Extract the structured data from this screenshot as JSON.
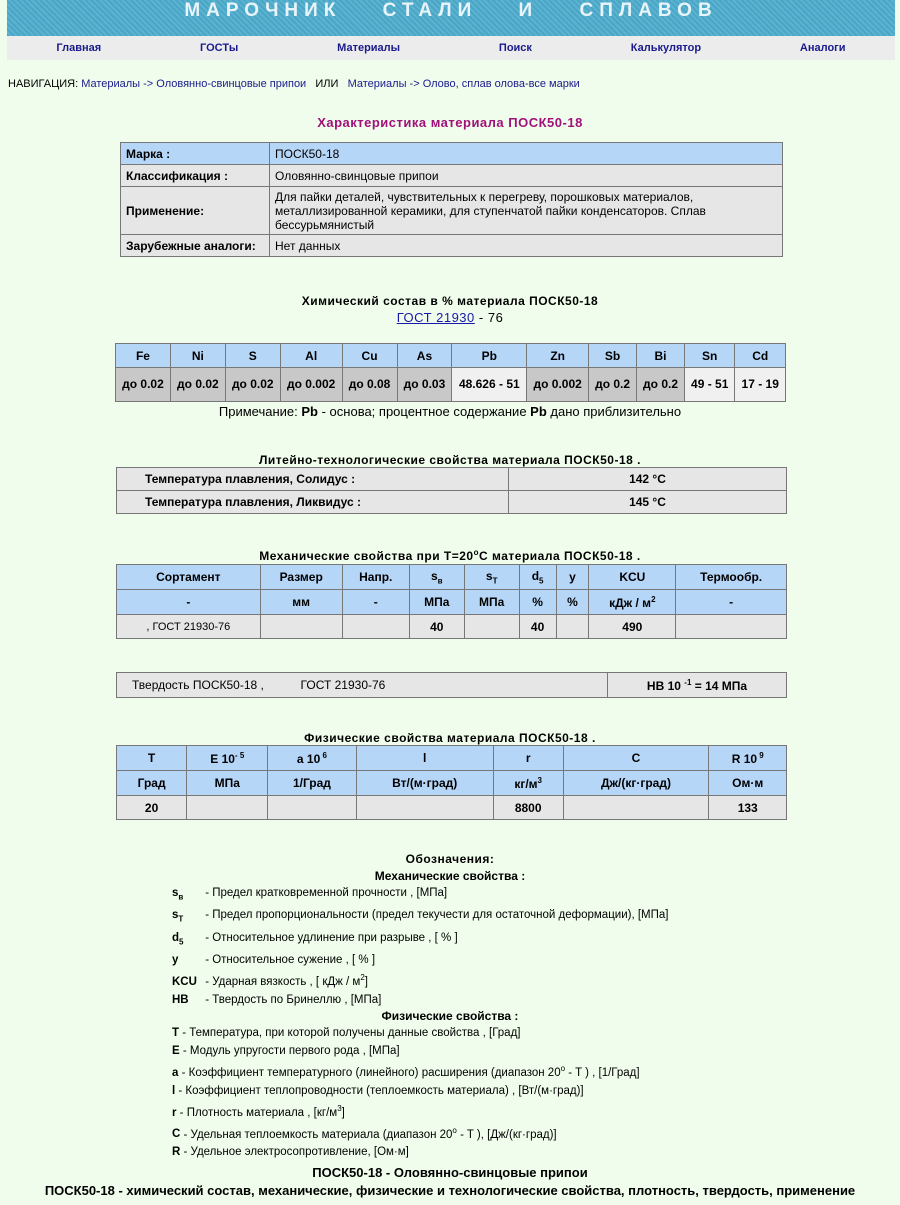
{
  "header": {
    "title": "МАРОЧНИК СТАЛИ И СПЛАВОВ"
  },
  "nav": [
    "Главная",
    "ГОСТы",
    "Материалы",
    "Поиск",
    "Калькулятор",
    "Аналоги"
  ],
  "breadcrumb": {
    "label": "НАВИГАЦИЯ:",
    "path1": "Материалы -> Оловянно-свинцовые припои",
    "or": "ИЛИ",
    "path2": "Материалы -> Олово, сплав олова-все марки"
  },
  "colors": {
    "accent": "#a0107a",
    "header_bg": "#4aa6c6",
    "table_header": "#b6d6f8"
  },
  "char": {
    "title": "Характеристика материала ПОСК50-18",
    "rows": [
      [
        "Марка :",
        "ПОСК50-18"
      ],
      [
        "Классификация :",
        "Оловянно-свинцовые припои"
      ],
      [
        "Применение:",
        "Для пайки деталей, чувствительных к перегреву, порошковых материалов, металлизированной керамики, для ступенчатой пайки конденсаторов. Сплав бессурьмянистый"
      ],
      [
        "Зарубежные аналоги:",
        "Нет данных"
      ]
    ]
  },
  "chem": {
    "title": "Химический состав в % материала   ПОСК50-18",
    "gost_link": "ГОСТ  21930",
    "gost_suffix": " - 76",
    "headers": [
      "Fe",
      "Ni",
      "S",
      "Al",
      "Cu",
      "As",
      "Pb",
      "Zn",
      "Sb",
      "Bi",
      "Sn",
      "Cd"
    ],
    "values": [
      "до 0.02",
      "до 0.02",
      "до 0.02",
      "до 0.002",
      "до 0.08",
      "до 0.03",
      "48.626 - 51",
      "до 0.002",
      "до 0.2",
      "до 0.2",
      "49 - 51",
      "17 - 19"
    ],
    "note": [
      "Примечание: ",
      "Pb",
      " - основа; процентное содержание ",
      "Pb",
      " дано приблизительно"
    ]
  },
  "cast": {
    "title": "Литейно-технологические свойства материала ПОСК50-18 .",
    "rows": [
      [
        "Температура плавления, Солидус :",
        "142   °C"
      ],
      [
        "Температура плавления, Ликвидус :",
        "145   °C"
      ]
    ]
  },
  "mech": {
    "title": "Механические свойства при Т=20",
    "title_sup": "o",
    "title_end": "C материала ПОСК50-18 .",
    "headers": [
      {
        "t": "Сортамент"
      },
      {
        "t": "Размер"
      },
      {
        "t": "Напр."
      },
      {
        "t": "s",
        "sub": "в"
      },
      {
        "t": "s",
        "sub": "T"
      },
      {
        "t": "d",
        "sub": "5"
      },
      {
        "t": "y"
      },
      {
        "t": "KCU"
      },
      {
        "t": "Термообр."
      }
    ],
    "units": [
      {
        "t": "-"
      },
      {
        "t": "мм"
      },
      {
        "t": "-"
      },
      {
        "t": "МПа"
      },
      {
        "t": "МПа"
      },
      {
        "t": "%"
      },
      {
        "t": "%"
      },
      {
        "t": "кДж / м",
        "sup": "2"
      },
      {
        "t": "-"
      }
    ],
    "rows": [
      [
        ", ГОСТ 21930-76",
        "",
        "",
        "40",
        "",
        "40",
        "",
        "490",
        ""
      ]
    ]
  },
  "hard": {
    "label": "Твердость   ПОСК50-18   ,",
    "gost": "ГОСТ 21930-76",
    "value_pre": "HB 10 ",
    "value_sup": "-1",
    "value_post": " = 14   МПа"
  },
  "phys": {
    "title": "Физические свойства материала ПОСК50-18 .",
    "headers": [
      {
        "t": "T"
      },
      {
        "t": "E 10",
        "sup": "- 5"
      },
      {
        "t": "a 10",
        "sup": " 6"
      },
      {
        "t": "l"
      },
      {
        "t": "r"
      },
      {
        "t": "C"
      },
      {
        "t": "R 10",
        "sup": " 9"
      }
    ],
    "units": [
      {
        "t": "Град"
      },
      {
        "t": "МПа"
      },
      {
        "t": "1/Град"
      },
      {
        "t": "Вт/(м·град)"
      },
      {
        "t": "кг/м",
        "sup": "3"
      },
      {
        "t": "Дж/(кг·град)"
      },
      {
        "t": "Ом·м"
      }
    ],
    "rows": [
      [
        "20",
        "",
        "",
        "",
        "8800",
        "",
        "133"
      ]
    ]
  },
  "legend": {
    "title": "Обозначения:",
    "mech_title": "Механические свойства :",
    "mech": [
      {
        "s": "s",
        "sub": "в",
        "d": " - Предел кратковременной прочности , [МПа]"
      },
      {
        "s": "s",
        "sub": "T",
        "d": " - Предел пропорциональности (предел текучести для остаточной деформации), [МПа]"
      },
      {
        "s": "d",
        "sub": "5",
        "d": " - Относительное удлинение при разрыве , [ % ]"
      },
      {
        "s": "y",
        "d": " - Относительное сужение , [ % ]"
      },
      {
        "s": "KCU",
        "d": " - Ударная вязкость , [ кДж / м",
        "sup": "2",
        "end": "]"
      },
      {
        "s": "HB",
        "d": " - Твердость по Бринеллю , [МПа]"
      }
    ],
    "phys_title": "Физические свойства :",
    "phys": [
      {
        "s": "T",
        "d": " - Температура, при которой получены данные свойства , [Град]"
      },
      {
        "s": "E",
        "d": " - Модуль упругости первого рода , [МПа]"
      },
      {
        "s": "a",
        "d": " - Коэффициент температурного (линейного) расширения (диапазон 20",
        "sup": "o",
        "end": " - T ) , [1/Град]"
      },
      {
        "s": "l",
        "d": " - Коэффициент теплопроводности (теплоемкость материала) , [Вт/(м·град)]"
      },
      {
        "s": "r",
        "d": " - Плотность материала , [кг/м",
        "sup": "3",
        "end": "]"
      },
      {
        "s": "C",
        "d": " - Удельная теплоемкость материала (диапазон 20",
        "sup": "o",
        "end": " - T ), [Дж/(кг·град)]"
      },
      {
        "s": "R",
        "d": " - Удельное электросопротивление, [Ом·м]"
      }
    ]
  },
  "footer": {
    "line1": "ПОСК50-18 - Оловянно-свинцовые припои",
    "line2": "ПОСК50-18 - химический состав, механические, физические и технологические свойства, плотность, твердость, применение"
  }
}
